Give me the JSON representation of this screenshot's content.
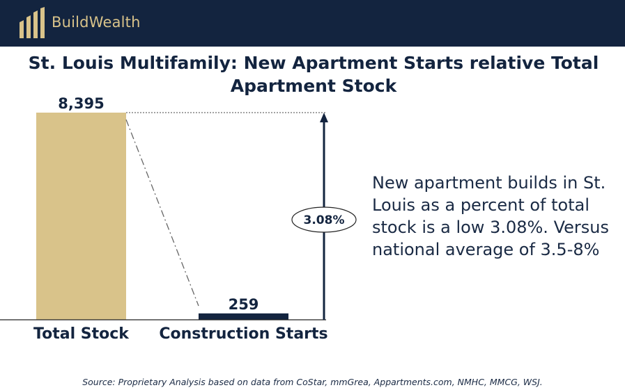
{
  "header": {
    "logo_text": "BuildWealth"
  },
  "title": "St. Louis Multifamily: New Apartment Starts relative Total Apartment Stock",
  "callout": "New apartment builds in St. Louis as a percent of total stock is a low 3.08%. Versus national average of 3.5-8%",
  "source": "Source: Proprietary Analysis based on data from CoStar, mmGrea, Appartments.com, NMHC, MMCG, WSJ.",
  "colors": {
    "header": "#13243f",
    "gold": "#d9c38a",
    "navy": "#13243f"
  },
  "chart_data": {
    "type": "bar",
    "categories": [
      "Total Stock",
      "Construction Starts"
    ],
    "values": [
      8395,
      259
    ],
    "value_labels": [
      "8,395",
      "259"
    ],
    "bar_colors": [
      "#d9c38a",
      "#13243f"
    ],
    "ratio_label": "3.08%",
    "ylim": [
      0,
      8395
    ]
  }
}
